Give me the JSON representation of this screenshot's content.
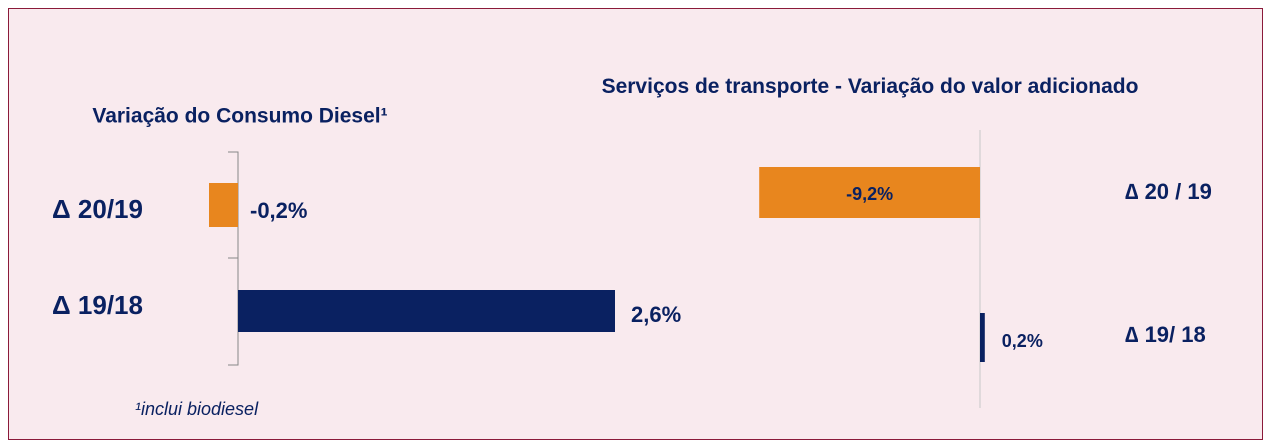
{
  "chart_data": [
    {
      "type": "bar",
      "orientation": "horizontal",
      "title": "Variação do Consumo Diesel¹",
      "categories": [
        "Δ 20/19",
        "Δ 19/18"
      ],
      "values": [
        -0.2,
        2.6
      ],
      "value_labels": [
        "-0,2%",
        "2,6%"
      ],
      "colors": [
        "#e8861e",
        "#0a2161"
      ],
      "note": "¹inclui biodiesel"
    },
    {
      "type": "bar",
      "orientation": "horizontal",
      "title": "Serviços de transporte - Variação do valor adicionado",
      "categories": [
        "∆ 20 / 19",
        "∆ 19/ 18"
      ],
      "values": [
        -9.2,
        0.2
      ],
      "value_labels": [
        "-9,2%",
        "0,2%"
      ],
      "colors": [
        "#e8861e",
        "#0a2161"
      ]
    }
  ]
}
